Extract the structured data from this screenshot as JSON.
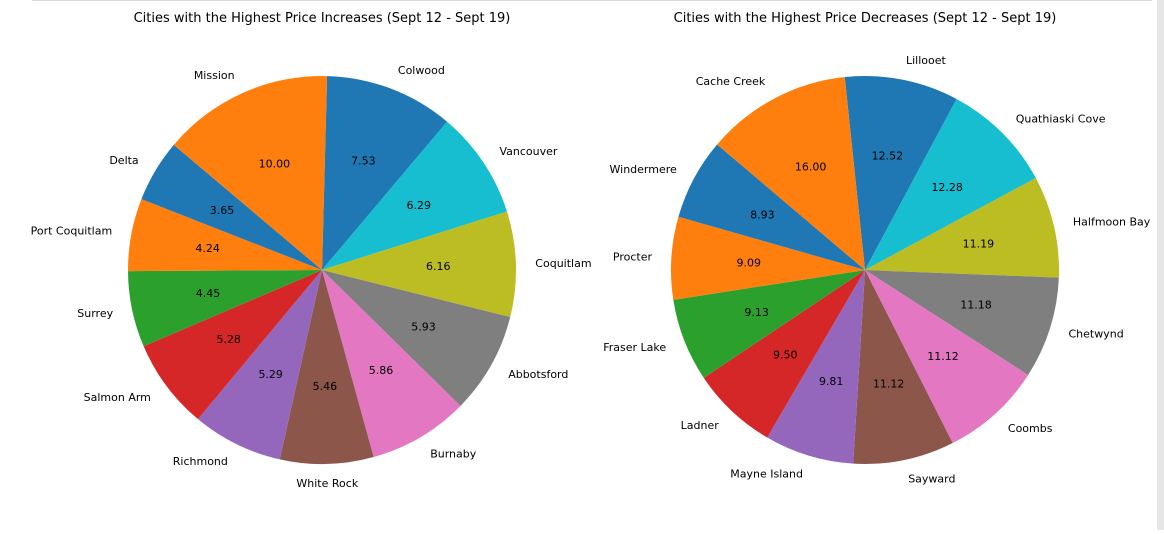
{
  "chart_data": [
    {
      "type": "pie",
      "title": "Cities with the Highest Price Increases (Sept 12 - Sept 19)",
      "categories": [
        "Colwood",
        "Vancouver",
        "Coquitlam",
        "Abbotsford",
        "Burnaby",
        "White Rock",
        "Richmond",
        "Salmon Arm",
        "Surrey",
        "Port Coquitlam",
        "Delta",
        "Mission"
      ],
      "values": [
        7.53,
        6.29,
        6.16,
        5.93,
        5.86,
        5.46,
        5.29,
        5.28,
        4.45,
        4.24,
        3.65,
        10.0
      ],
      "value_labels": [
        "7.53",
        "6.29",
        "6.16",
        "5.93",
        "5.86",
        "5.46",
        "5.29",
        "5.28",
        "4.45",
        "4.24",
        "3.65",
        "10.00"
      ],
      "colors": [
        "#1f77b4",
        "#17becf",
        "#bcbd22",
        "#7f7f7f",
        "#e377c2",
        "#8c564b",
        "#9467bd",
        "#d62728",
        "#2ca02c",
        "#ff7f0e",
        "#1f77b4",
        "#ff7f0e"
      ],
      "start_angle_deg": 88.5,
      "direction": "clockwise"
    },
    {
      "type": "pie",
      "title": "Cities with the Highest Price Decreases (Sept 12 - Sept 19)",
      "categories": [
        "Lillooet",
        "Quathiaski Cove",
        "Halfmoon Bay",
        "Chetwynd",
        "Coombs",
        "Sayward",
        "Mayne Island",
        "Ladner",
        "Fraser Lake",
        "Procter",
        "Windermere",
        "Cache Creek"
      ],
      "values": [
        12.52,
        12.28,
        11.19,
        11.18,
        11.12,
        11.12,
        9.81,
        9.5,
        9.13,
        9.09,
        8.93,
        16.0
      ],
      "value_labels": [
        "12.52",
        "12.28",
        "11.19",
        "11.18",
        "11.12",
        "11.12",
        "9.81",
        "9.50",
        "9.13",
        "9.09",
        "8.93",
        "16.00"
      ],
      "colors": [
        "#1f77b4",
        "#17becf",
        "#bcbd22",
        "#7f7f7f",
        "#e377c2",
        "#8c564b",
        "#9467bd",
        "#d62728",
        "#2ca02c",
        "#ff7f0e",
        "#1f77b4",
        "#ff7f0e"
      ],
      "start_angle_deg": 96,
      "direction": "clockwise"
    }
  ]
}
